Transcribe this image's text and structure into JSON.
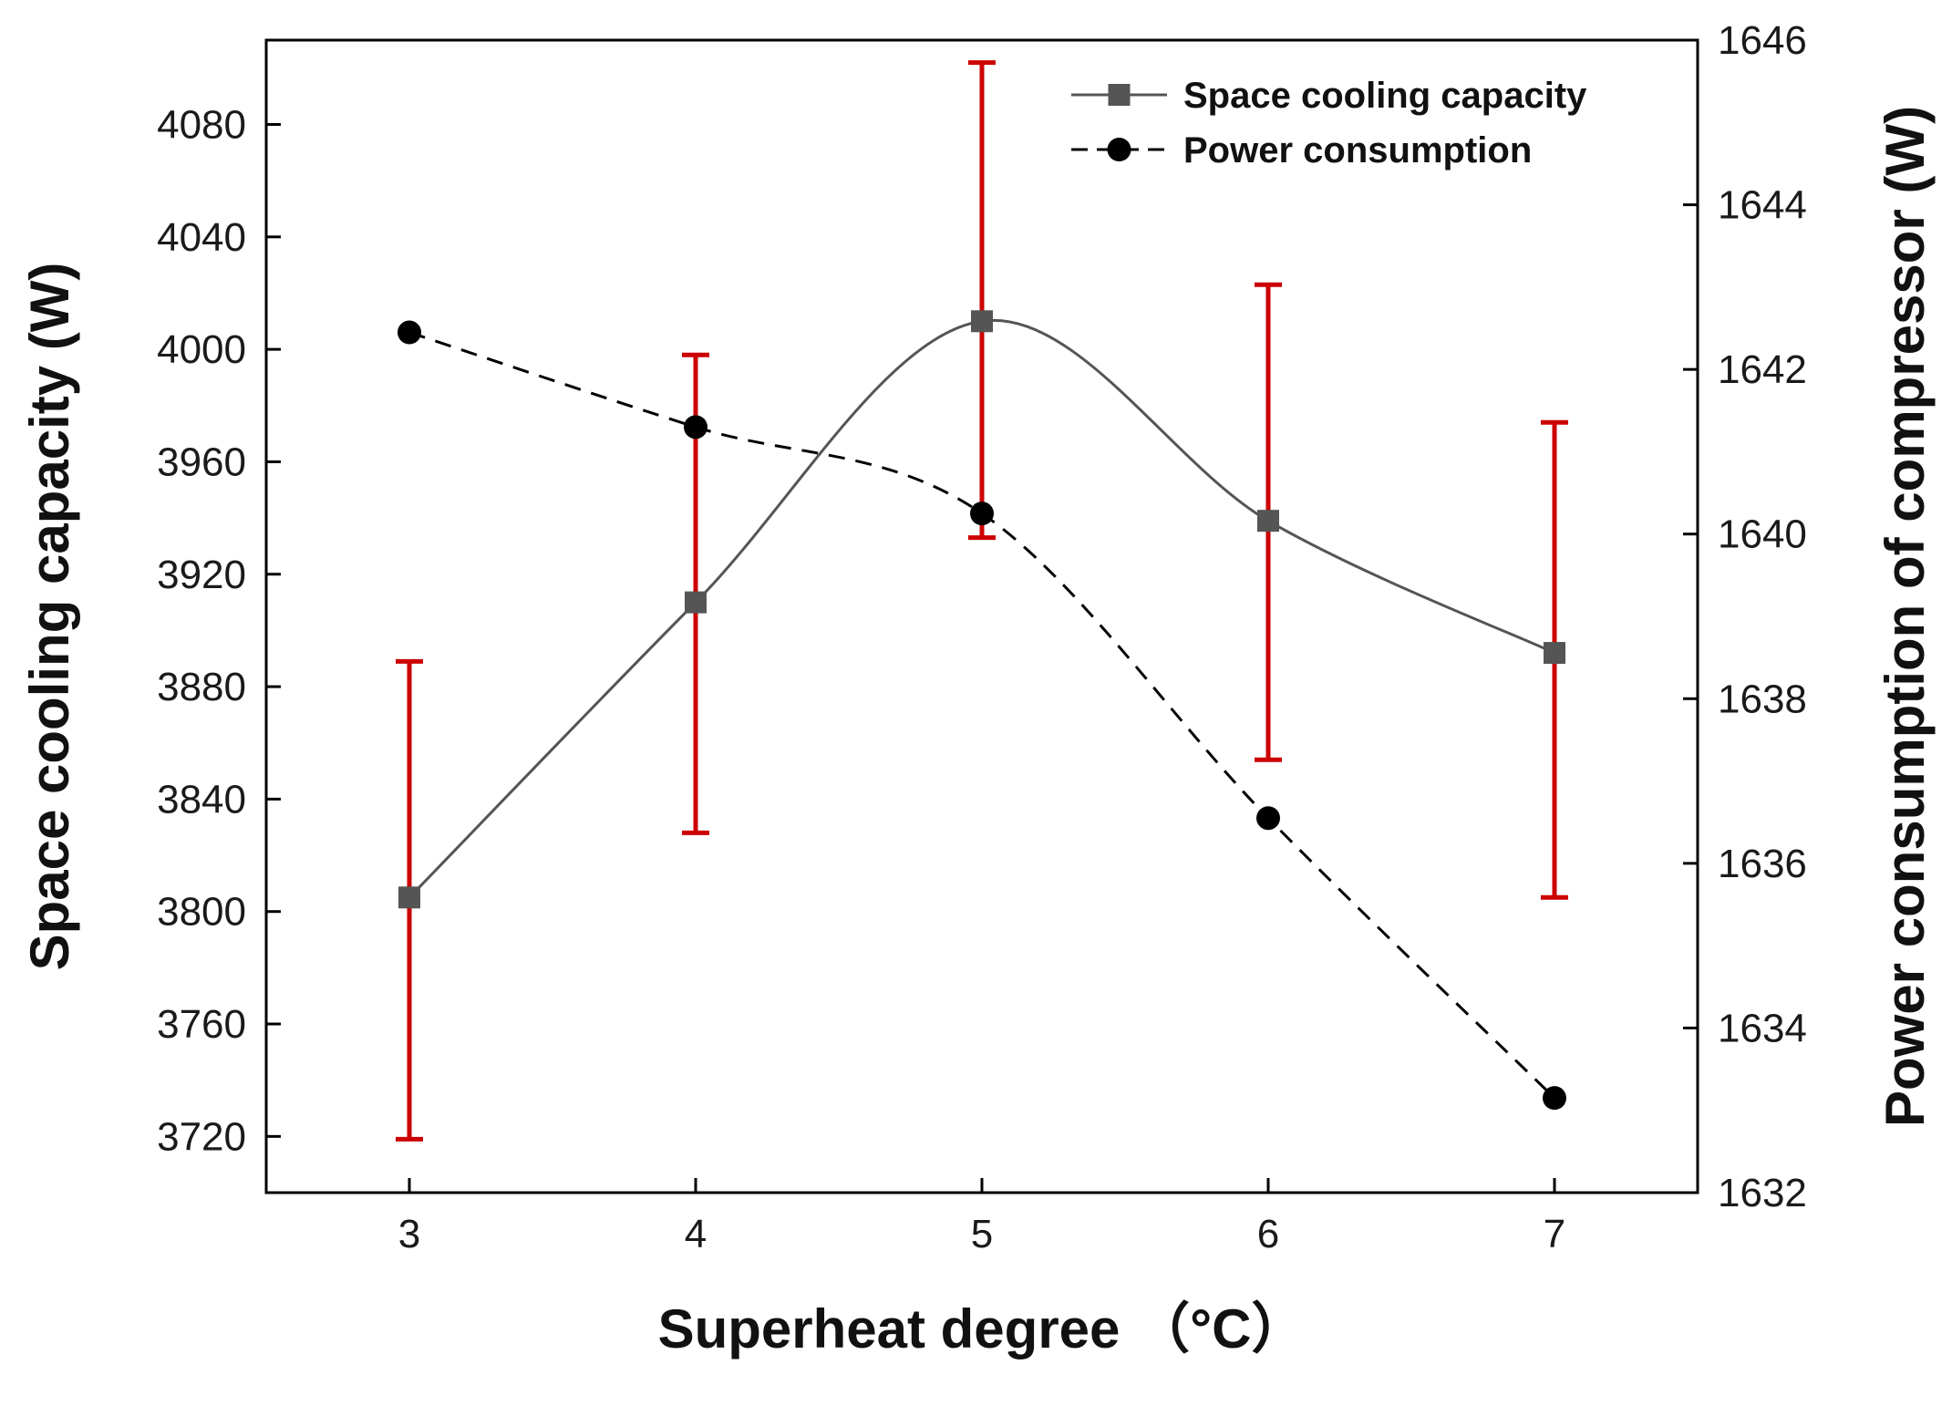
{
  "chart_data": {
    "type": "line",
    "title": "",
    "xlabel": "Superheat degree （°C）",
    "ylabel_left": "Space cooling capacity (W)",
    "ylabel_right": "Power consumption of compressor (W)",
    "x": [
      3,
      4,
      5,
      6,
      7
    ],
    "x_ticks": [
      "3",
      "4",
      "5",
      "6",
      "7"
    ],
    "xlim": [
      2.5,
      7.5
    ],
    "ylim_left": [
      3700,
      4110
    ],
    "ylim_right": [
      1632,
      1646
    ],
    "yticks_left": [
      "3720",
      "3760",
      "3800",
      "3840",
      "3880",
      "3920",
      "3960",
      "4000",
      "4040",
      "4080"
    ],
    "yticks_right": [
      "1632",
      "1634",
      "1636",
      "1638",
      "1640",
      "1642",
      "1644",
      "1646"
    ],
    "legend_position": "top-right",
    "series": [
      {
        "name": "Space cooling capacity",
        "axis": "left",
        "marker": "square",
        "line_style": "solid",
        "color": "#555555",
        "values": [
          3805,
          3910,
          4010,
          3939,
          3892
        ],
        "error_low": [
          3719,
          3828,
          3933,
          3854,
          3805
        ],
        "error_high": [
          3889,
          3998,
          4102,
          4023,
          3974
        ],
        "error_color": "#cc0000"
      },
      {
        "name": "Power consumption",
        "axis": "right",
        "marker": "circle",
        "line_style": "dashed",
        "color": "#000000",
        "values": [
          1642.45,
          1641.3,
          1640.25,
          1636.55,
          1633.15
        ]
      }
    ]
  }
}
